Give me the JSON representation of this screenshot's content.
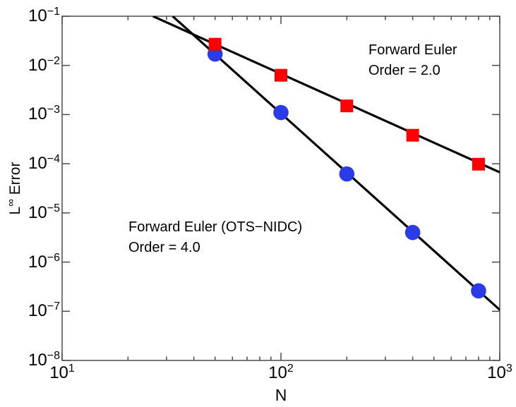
{
  "chart_data": {
    "type": "line",
    "title": "",
    "xlabel": "N",
    "ylabel": "L∞ Error",
    "ylabel_parts": {
      "base": "L",
      "sup": "∞",
      "rest": " Error"
    },
    "x_scale": "log",
    "y_scale": "log",
    "xlim": [
      10,
      1000
    ],
    "ylim": [
      1e-08,
      0.1
    ],
    "grid": false,
    "box": true,
    "x_major_tick_exponents": [
      1,
      2,
      3
    ],
    "y_major_tick_exponents": [
      -1,
      -2,
      -3,
      -4,
      -5,
      -6,
      -7,
      -8
    ],
    "axis_color": "#4c4c4c",
    "line_color": "#000000",
    "background_color": "#ffffff",
    "x": [
      50,
      100,
      200,
      400,
      800
    ],
    "series": [
      {
        "name": "Forward Euler (OTS−NIDC)",
        "order": 4.0,
        "marker": "circle",
        "color": "#2b3be8",
        "values": [
          0.017,
          0.0011,
          6.2e-05,
          4e-06,
          2.6e-07
        ],
        "fit_line": {
          "x": [
            32,
            1000
          ],
          "y": [
            0.1,
            1.07e-07
          ]
        }
      },
      {
        "name": "Forward Euler",
        "order": 2.0,
        "marker": "square",
        "color": "#fb0100",
        "values": [
          0.027,
          0.0063,
          0.0015,
          0.00038,
          9.8e-05
        ],
        "fit_line": {
          "x": [
            26,
            1000
          ],
          "y": [
            0.1,
            6.7e-05
          ]
        }
      }
    ],
    "annotations": [
      {
        "lines": [
          "Forward Euler",
          "Order = 2.0"
        ]
      },
      {
        "lines": [
          "Forward Euler (OTS−NIDC)",
          "Order = 4.0"
        ]
      }
    ],
    "legend": "none (in-plot text annotations)"
  }
}
